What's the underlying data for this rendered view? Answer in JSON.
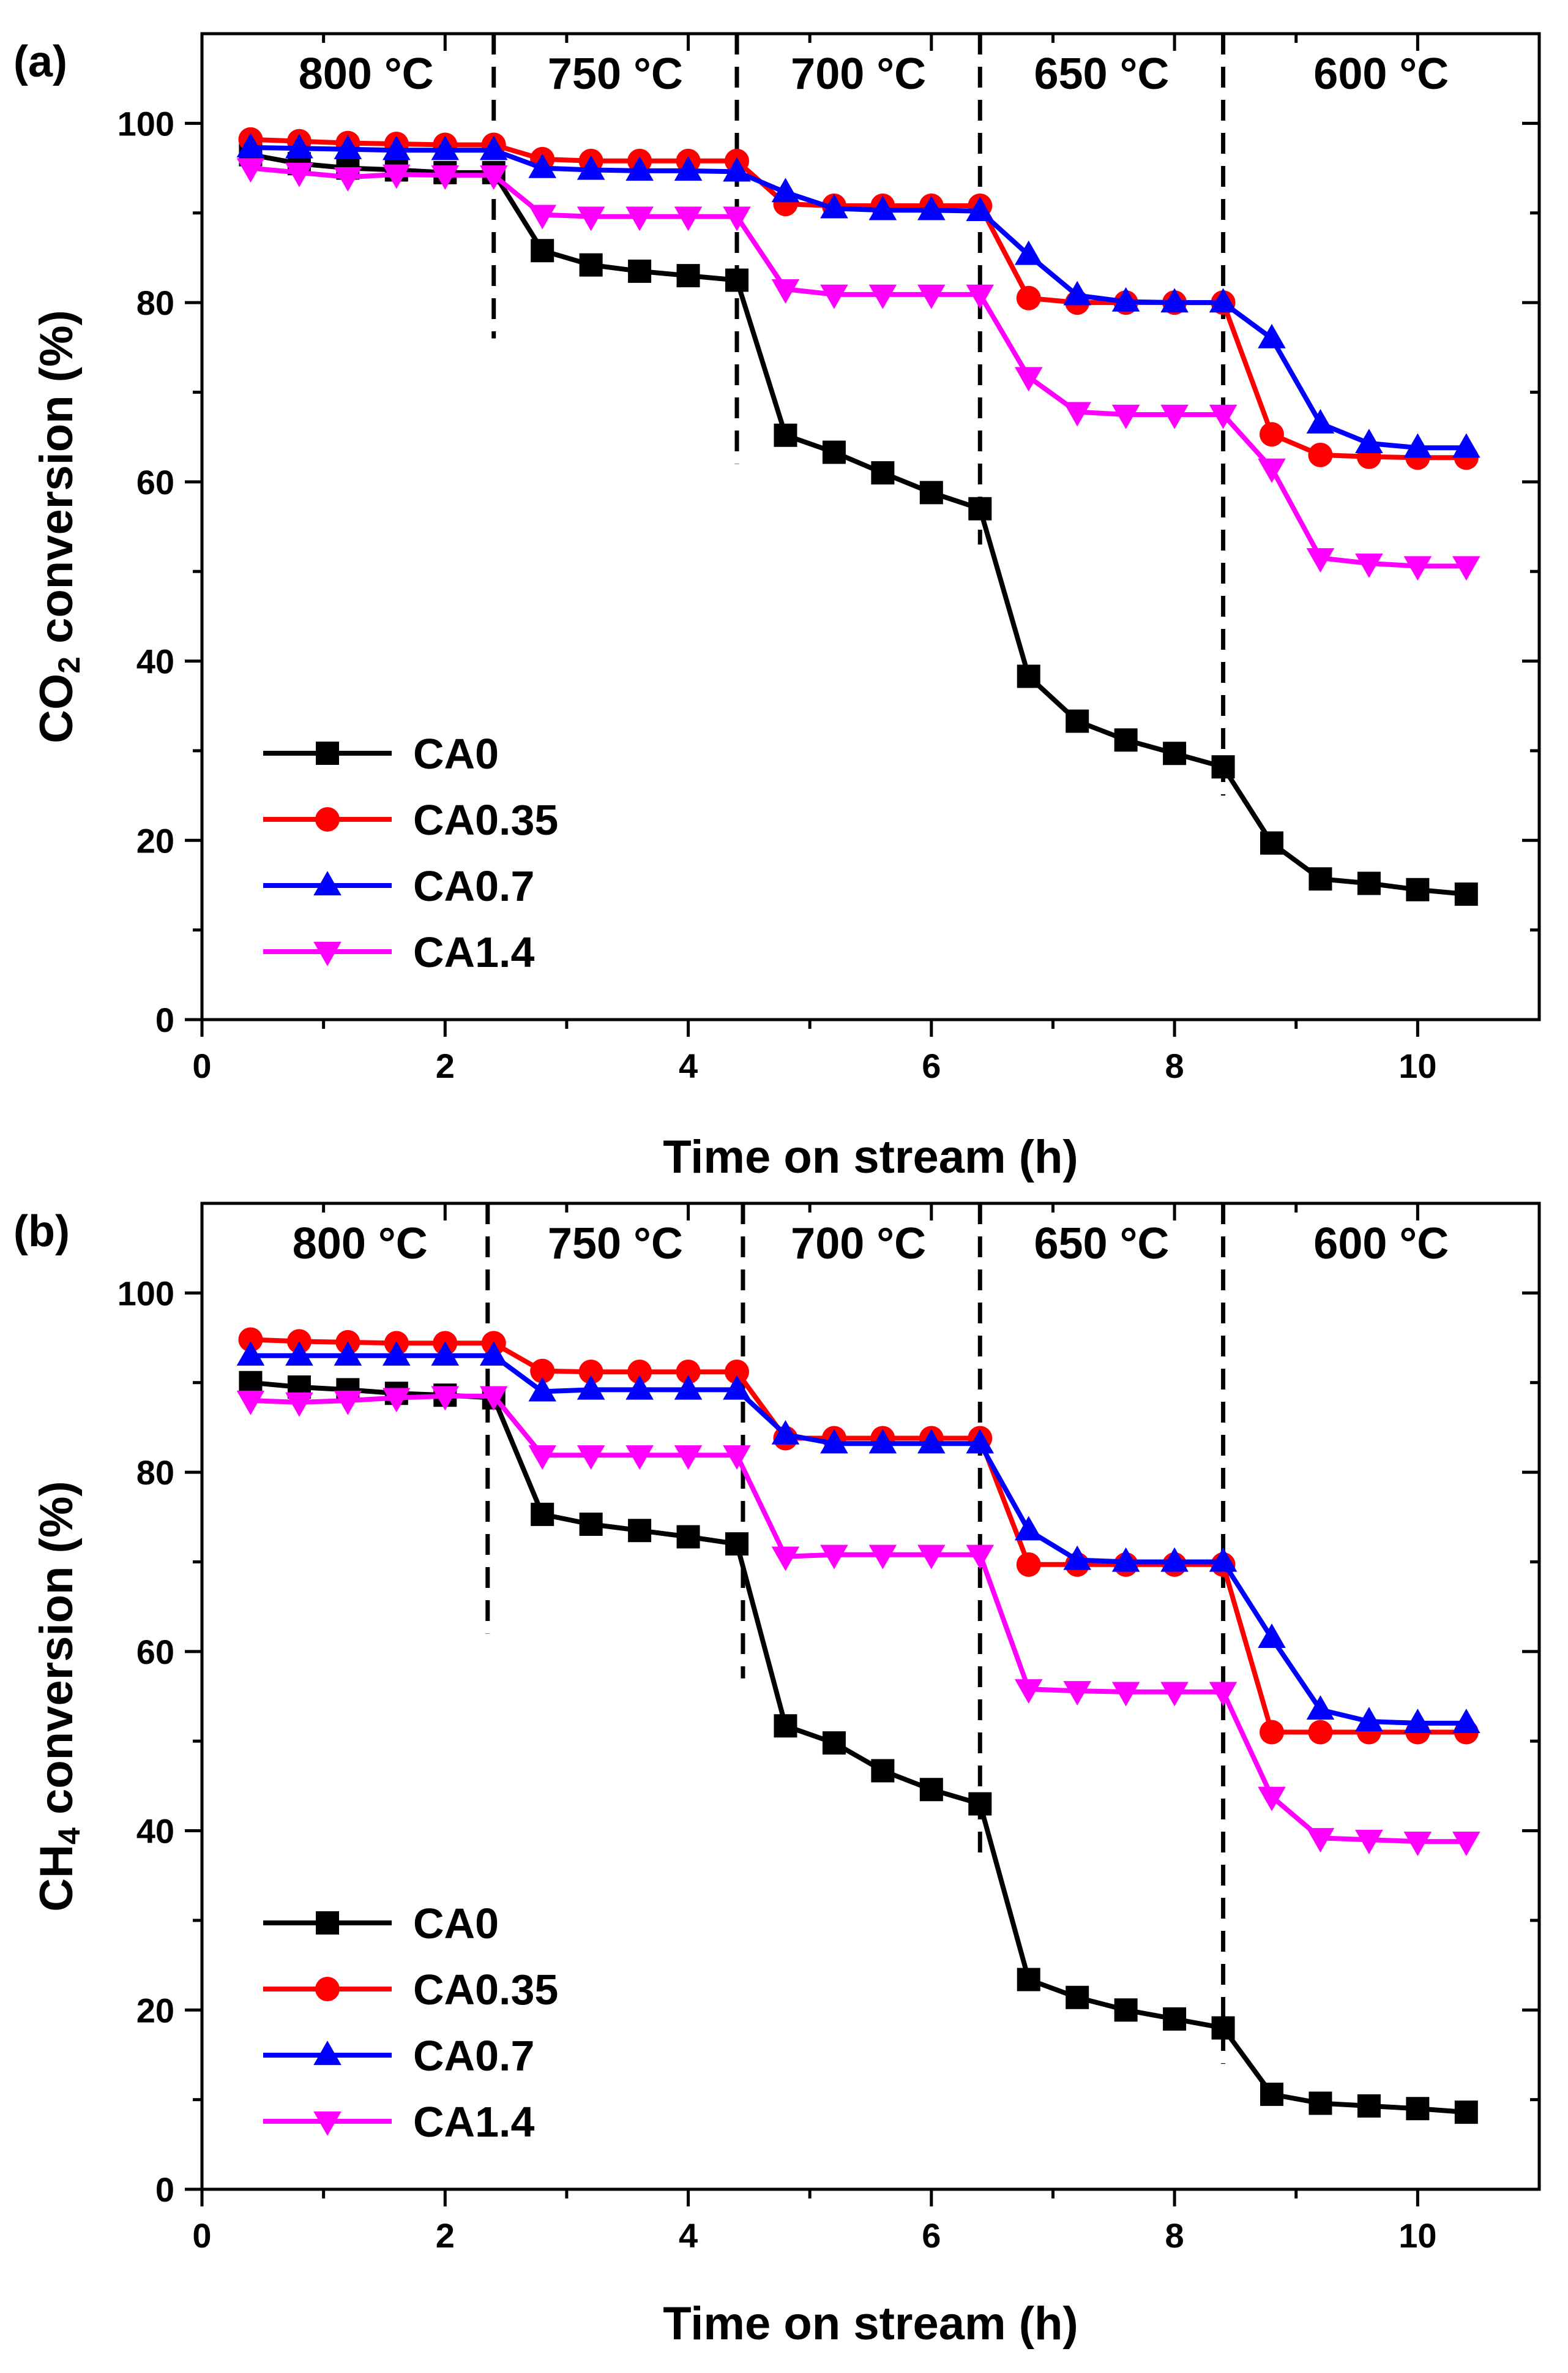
{
  "chart_data": [
    {
      "type": "line",
      "panel_label": "(a)",
      "xlabel": "Time on stream (h)",
      "ylabel_main": "CO",
      "ylabel_sub": "2",
      "ylabel_rest": " conversion (%)",
      "xlim": [
        0,
        11
      ],
      "ylim": [
        0,
        110
      ],
      "xticks": [
        0,
        2,
        4,
        6,
        8,
        10
      ],
      "yticks": [
        0,
        20,
        40,
        60,
        80,
        100
      ],
      "dividers": [
        2.4,
        4.4,
        6.4,
        8.4
      ],
      "divider_top": 110,
      "divider_bottoms": [
        76,
        62,
        53,
        25
      ],
      "regions": [
        {
          "label": "800 °C",
          "x": 1.35
        },
        {
          "label": "750 °C",
          "x": 3.4
        },
        {
          "label": "700 °C",
          "x": 5.4
        },
        {
          "label": "650 °C",
          "x": 7.4
        },
        {
          "label": "600 °C",
          "x": 9.7
        }
      ],
      "x": [
        0.4,
        0.8,
        1.2,
        1.6,
        2.0,
        2.4,
        2.8,
        3.2,
        3.6,
        4.0,
        4.4,
        4.8,
        5.2,
        5.6,
        6.0,
        6.4,
        6.8,
        7.2,
        7.6,
        8.0,
        8.4,
        8.8,
        9.2,
        9.6,
        10.0,
        10.4
      ],
      "series": [
        {
          "name": "CA0",
          "color": "#000000",
          "marker": "square",
          "values": [
            96.5,
            95.5,
            95,
            94.8,
            94.5,
            94.5,
            85.8,
            84.2,
            83.5,
            83,
            82.5,
            65.2,
            63.3,
            61,
            58.8,
            57,
            38.3,
            33.3,
            31.2,
            29.7,
            28.2,
            19.7,
            15.7,
            15.2,
            14.5,
            14
          ]
        },
        {
          "name": "CA0.35",
          "color": "#ff0000",
          "marker": "circle",
          "values": [
            98.2,
            98,
            97.8,
            97.7,
            97.6,
            97.6,
            96,
            95.8,
            95.8,
            95.8,
            95.8,
            91,
            90.8,
            90.8,
            90.8,
            90.8,
            80.5,
            80,
            80,
            80,
            80,
            65.3,
            63,
            62.8,
            62.7,
            62.7
          ]
        },
        {
          "name": "CA0.7",
          "color": "#0000ff",
          "marker": "triangle-up",
          "values": [
            97.3,
            97.2,
            97.1,
            97,
            97,
            97,
            95,
            94.8,
            94.7,
            94.7,
            94.6,
            92.3,
            90.5,
            90.3,
            90.3,
            90.2,
            85.3,
            80.8,
            80.1,
            80,
            80,
            76,
            66.5,
            64.3,
            63.8,
            63.8
          ]
        },
        {
          "name": "CA1.4",
          "color": "#ff00ff",
          "marker": "triangle-down",
          "values": [
            95,
            94.5,
            94,
            94.3,
            94.2,
            94.2,
            89.8,
            89.6,
            89.6,
            89.6,
            89.6,
            81.5,
            80.9,
            80.9,
            80.9,
            80.9,
            71.7,
            67.8,
            67.5,
            67.5,
            67.5,
            61.5,
            51.5,
            50.9,
            50.6,
            50.6
          ]
        }
      ]
    },
    {
      "type": "line",
      "panel_label": "(b)",
      "xlabel": "Time on stream (h)",
      "ylabel_main": "CH",
      "ylabel_sub": "4",
      "ylabel_rest": " conversion (%)",
      "xlim": [
        0,
        11
      ],
      "ylim": [
        0,
        110
      ],
      "xticks": [
        0,
        2,
        4,
        6,
        8,
        10
      ],
      "yticks": [
        0,
        20,
        40,
        60,
        80,
        100
      ],
      "dividers": [
        2.35,
        4.45,
        6.4,
        8.4
      ],
      "divider_top": 110,
      "divider_bottoms": [
        62,
        57,
        37,
        14
      ],
      "regions": [
        {
          "label": "800 °C",
          "x": 1.3
        },
        {
          "label": "750 °C",
          "x": 3.4
        },
        {
          "label": "700 °C",
          "x": 5.4
        },
        {
          "label": "650 °C",
          "x": 7.4
        },
        {
          "label": "600 °C",
          "x": 9.7
        }
      ],
      "x": [
        0.4,
        0.8,
        1.2,
        1.6,
        2.0,
        2.4,
        2.8,
        3.2,
        3.6,
        4.0,
        4.4,
        4.8,
        5.2,
        5.6,
        6.0,
        6.4,
        6.8,
        7.2,
        7.6,
        8.0,
        8.4,
        8.8,
        9.2,
        9.6,
        10.0,
        10.4
      ],
      "series": [
        {
          "name": "CA0",
          "color": "#000000",
          "marker": "square",
          "values": [
            90,
            89.5,
            89.2,
            88.8,
            88.6,
            88.3,
            75.3,
            74.2,
            73.5,
            72.8,
            72,
            51.7,
            49.8,
            46.7,
            44.6,
            43,
            23.4,
            21.4,
            20,
            19,
            18,
            10.6,
            9.6,
            9.3,
            9,
            8.6
          ]
        },
        {
          "name": "CA0.35",
          "color": "#ff0000",
          "marker": "circle",
          "values": [
            94.8,
            94.6,
            94.5,
            94.4,
            94.4,
            94.4,
            91.3,
            91.2,
            91.2,
            91.2,
            91.2,
            83.8,
            83.8,
            83.8,
            83.8,
            83.8,
            69.7,
            69.7,
            69.7,
            69.7,
            69.7,
            51,
            51,
            51,
            51,
            51
          ]
        },
        {
          "name": "CA0.7",
          "color": "#0000ff",
          "marker": "triangle-up",
          "values": [
            93,
            93,
            93,
            93,
            93,
            93,
            89,
            89.2,
            89.2,
            89.2,
            89.2,
            84.2,
            83.2,
            83.2,
            83.2,
            83.2,
            73.5,
            70.2,
            70,
            70,
            70,
            61.5,
            53.5,
            52.2,
            52,
            52
          ]
        },
        {
          "name": "CA1.4",
          "color": "#ff00ff",
          "marker": "triangle-down",
          "values": [
            88,
            87.8,
            88,
            88.3,
            88.5,
            88.5,
            81.9,
            81.9,
            81.9,
            81.9,
            81.9,
            70.6,
            70.8,
            70.8,
            70.8,
            70.8,
            55.8,
            55.6,
            55.5,
            55.5,
            55.5,
            43.8,
            39.2,
            39,
            38.8,
            38.8
          ]
        }
      ]
    }
  ]
}
